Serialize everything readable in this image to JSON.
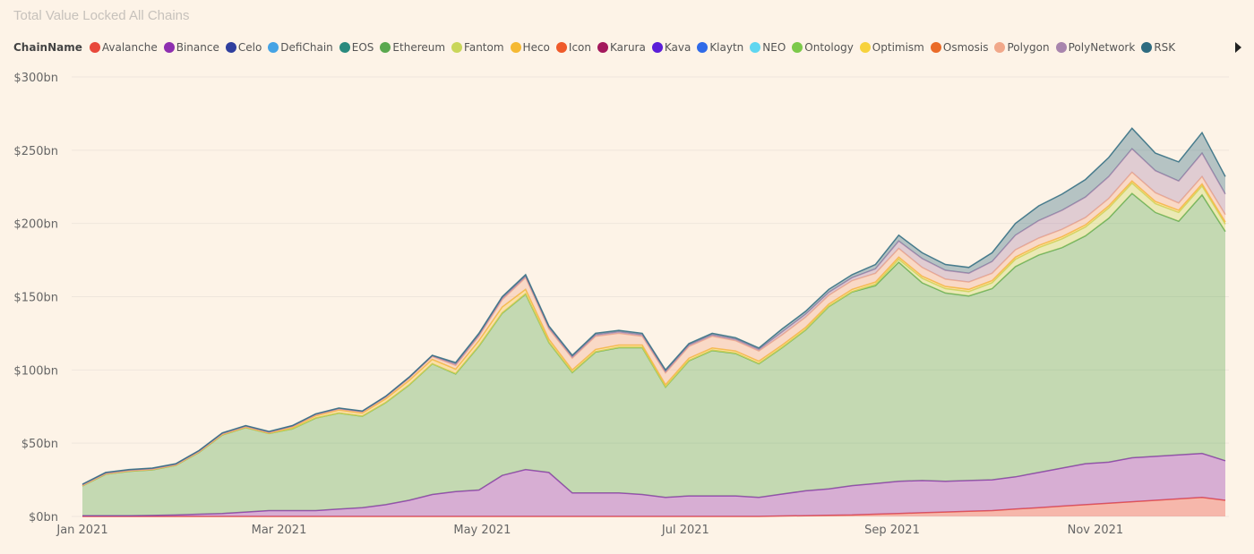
{
  "title": "Total Value Locked All Chains",
  "legend": {
    "title": "ChainName",
    "items": [
      {
        "name": "Avalanche",
        "color": "#e8483b"
      },
      {
        "name": "Binance",
        "color": "#8e2fb0"
      },
      {
        "name": "Celo",
        "color": "#2f3f9e"
      },
      {
        "name": "DefiChain",
        "color": "#45a3e5"
      },
      {
        "name": "EOS",
        "color": "#2a8a7e"
      },
      {
        "name": "Ethereum",
        "color": "#5aa84f"
      },
      {
        "name": "Fantom",
        "color": "#c9d65a"
      },
      {
        "name": "Heco",
        "color": "#f5b933"
      },
      {
        "name": "Icon",
        "color": "#ef5a2a"
      },
      {
        "name": "Karura",
        "color": "#a3185c"
      },
      {
        "name": "Kava",
        "color": "#5b1ed8"
      },
      {
        "name": "Klaytn",
        "color": "#2f6ae8"
      },
      {
        "name": "NEO",
        "color": "#5fd6f0"
      },
      {
        "name": "Ontology",
        "color": "#7cc94a"
      },
      {
        "name": "Optimism",
        "color": "#f7d23c"
      },
      {
        "name": "Osmosis",
        "color": "#ea6b28"
      },
      {
        "name": "Polygon",
        "color": "#f1a88a"
      },
      {
        "name": "PolyNetwork",
        "color": "#a885ad"
      },
      {
        "name": "RSK",
        "color": "#2e6b80"
      }
    ],
    "next_icon": "triangle-right-icon"
  },
  "chart_data": {
    "type": "area",
    "stacked": true,
    "title": "Total Value Locked All Chains",
    "xlabel": "",
    "ylabel": "",
    "x_start": "2021-01-01",
    "x_end": "2021-12-10",
    "x_step_days": 7,
    "x_ticks": [
      {
        "date": "2021-01-01",
        "label": "Jan 2021"
      },
      {
        "date": "2021-03-01",
        "label": "Mar 2021"
      },
      {
        "date": "2021-05-01",
        "label": "May 2021"
      },
      {
        "date": "2021-07-01",
        "label": "Jul 2021"
      },
      {
        "date": "2021-09-01",
        "label": "Sep 2021"
      },
      {
        "date": "2021-11-01",
        "label": "Nov 2021"
      }
    ],
    "y_ticks": [
      {
        "value": 0,
        "label": "$0bn"
      },
      {
        "value": 50,
        "label": "$50bn"
      },
      {
        "value": 100,
        "label": "$100bn"
      },
      {
        "value": 150,
        "label": "$150bn"
      },
      {
        "value": 200,
        "label": "$200bn"
      },
      {
        "value": 250,
        "label": "$250bn"
      },
      {
        "value": 300,
        "label": "$300bn"
      }
    ],
    "ylim": [
      0,
      300
    ],
    "y_unit": "bn USD",
    "grid": true,
    "legend_position": "top",
    "series": [
      {
        "name": "Avalanche",
        "color": "#e8483b",
        "values": [
          0,
          0,
          0,
          0,
          0,
          0,
          0,
          0,
          0,
          0,
          0,
          0,
          0,
          0,
          0,
          0,
          0,
          0,
          0,
          0,
          0,
          0,
          0,
          0,
          0,
          0,
          0,
          0,
          0,
          0,
          0.3,
          0.5,
          0.8,
          1,
          1.5,
          2,
          2.5,
          3,
          3.5,
          4,
          5,
          6,
          7,
          8,
          9,
          10,
          11,
          12,
          13,
          11
        ]
      },
      {
        "name": "Binance",
        "color": "#8e2fb0",
        "values": [
          0.5,
          0.5,
          0.5,
          0.7,
          1,
          1.5,
          2,
          3,
          4,
          4,
          4,
          5,
          6,
          8,
          11,
          15,
          17,
          18,
          28,
          32,
          30,
          16,
          16,
          16,
          15,
          13,
          14,
          14,
          14,
          13,
          15,
          17,
          18,
          20,
          21,
          22,
          22,
          21,
          21,
          21,
          22,
          24,
          26,
          28,
          28,
          30,
          30,
          30,
          30,
          27
        ]
      },
      {
        "name": "Ethereum",
        "color": "#5aa84f",
        "values": [
          20.3,
          28.3,
          30.3,
          31.1,
          33.8,
          42.2,
          53.6,
          57.6,
          52.6,
          55.7,
          63.1,
          65.5,
          62.4,
          69.6,
          78.6,
          89.1,
          80.2,
          98.2,
          110.7,
          119.7,
          88.7,
          82.2,
          96.2,
          99.2,
          100.2,
          75.2,
          92.2,
          99.2,
          97.2,
          91.2,
          99.9,
          109.7,
          124.4,
          132.2,
          135,
          149.5,
          135,
          128.5,
          126,
          130.5,
          143.5,
          148.5,
          150.5,
          155.5,
          166.5,
          180.5,
          166.5,
          159.5,
          176.5,
          156.5
        ]
      },
      {
        "name": "Fantom",
        "color": "#c9d65a",
        "values": [
          0.1,
          0.1,
          0.1,
          0.1,
          0.1,
          0.1,
          0.1,
          0.1,
          0.1,
          0.1,
          0.1,
          0.1,
          0.1,
          0.1,
          0.1,
          0.1,
          0.3,
          0.3,
          0.3,
          0.3,
          0.3,
          0.3,
          0.3,
          0.3,
          0.3,
          0.3,
          0.3,
          0.3,
          0.3,
          0.3,
          0.3,
          0.3,
          0.3,
          0.3,
          1,
          2,
          3,
          3,
          3,
          4,
          5,
          5,
          6,
          6,
          7,
          7,
          6,
          6,
          6,
          5
        ]
      },
      {
        "name": "Heco",
        "color": "#f5b933",
        "values": [
          0.2,
          0.2,
          0.2,
          0.2,
          0.2,
          0.2,
          0.2,
          0.2,
          0.2,
          1,
          1.5,
          2,
          2,
          2.5,
          3,
          3,
          3,
          3.5,
          4,
          3,
          2,
          1.5,
          1.5,
          1.5,
          1.5,
          1.5,
          1.5,
          1.5,
          1.5,
          1.5,
          1.5,
          1.5,
          1.5,
          1.5,
          1.5,
          1.5,
          1.5,
          1.5,
          1.5,
          1.5,
          1.5,
          1.5,
          1.5,
          1.5,
          1.5,
          1.5,
          1.5,
          1.5,
          1.5,
          1.5
        ]
      },
      {
        "name": "Polygon",
        "color": "#f1a88a",
        "values": [
          0.1,
          0.1,
          0.1,
          0.1,
          0.1,
          0.2,
          0.3,
          0.3,
          0.3,
          0.4,
          0.5,
          0.6,
          0.7,
          1,
          1.5,
          2,
          2.5,
          3,
          5,
          8,
          7,
          8,
          9,
          8,
          6,
          8,
          8,
          8,
          7,
          7,
          7,
          7,
          6,
          6,
          6,
          6,
          6,
          5,
          5,
          5,
          5,
          5,
          5,
          5,
          5,
          6,
          6,
          5,
          5,
          5
        ]
      },
      {
        "name": "PolyNetwork",
        "color": "#a885ad",
        "values": [
          0.5,
          0.5,
          0.5,
          0.5,
          0.5,
          0.5,
          0.5,
          0.5,
          0.5,
          0.5,
          0.5,
          0.5,
          0.5,
          0.5,
          0.5,
          0.5,
          1,
          1,
          1,
          1,
          1,
          1,
          1,
          1,
          1,
          1,
          1,
          1,
          1,
          1,
          2,
          2,
          2,
          2,
          3,
          5,
          6,
          6,
          6,
          8,
          10,
          12,
          13,
          14,
          15,
          16,
          15,
          15,
          16,
          14
        ]
      },
      {
        "name": "RSK",
        "color": "#2e6b80",
        "values": [
          0.3,
          0.3,
          0.3,
          0.3,
          0.3,
          0.3,
          0.3,
          0.3,
          0.3,
          0.3,
          0.3,
          0.3,
          0.3,
          0.3,
          0.3,
          0.3,
          1,
          1,
          1,
          1,
          1,
          1,
          1,
          1,
          1,
          1,
          1,
          1,
          1,
          1,
          2,
          2,
          2,
          2,
          3,
          4,
          4,
          4,
          4,
          6,
          8,
          10,
          11,
          12,
          13,
          14,
          12,
          13,
          14,
          12
        ]
      }
    ]
  }
}
